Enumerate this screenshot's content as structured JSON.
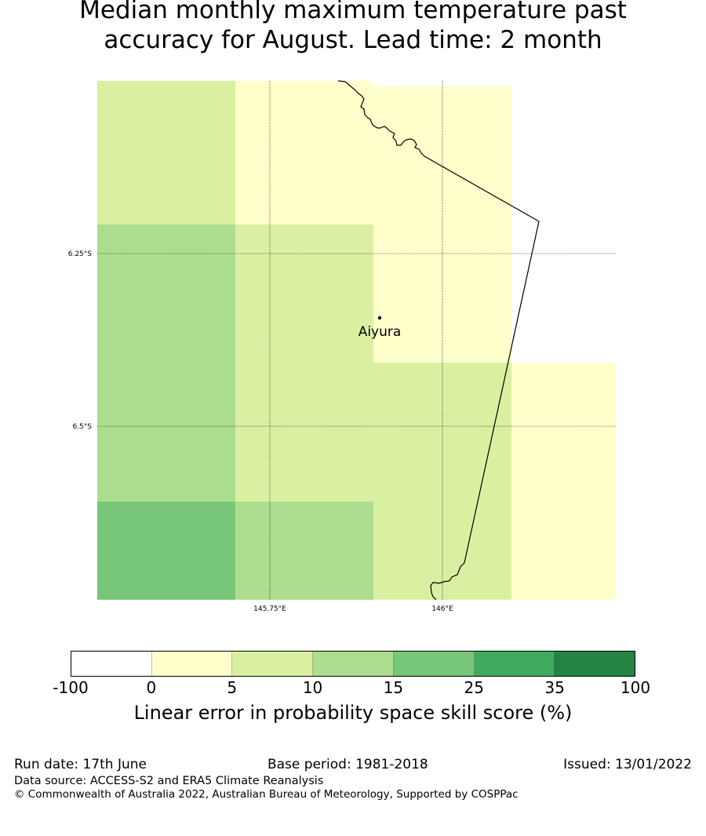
{
  "title_lines": [
    "Median monthly maximum temperature past",
    "accuracy for August. Lead time: 2 month"
  ],
  "map": {
    "lat_labels": [
      "6.25°S",
      "6.5°S"
    ],
    "lon_labels": [
      "145.75°E",
      "146°E"
    ],
    "place": {
      "name": "Aiyura"
    },
    "cell_colors": {
      "0-5": "#ffffcc",
      "5-10": "#d9f0a3",
      "10-15": "#addd8e",
      "15-25": "#78c679"
    }
  },
  "colorbar": {
    "ticks": [
      "-100",
      "0",
      "5",
      "10",
      "15",
      "25",
      "35",
      "100"
    ],
    "colors": [
      "#ffffff",
      "#ffffcc",
      "#d9f0a3",
      "#addd8e",
      "#78c679",
      "#41ab5d",
      "#238443"
    ],
    "label": "Linear error in probability space skill score (%)"
  },
  "footer": {
    "run_date": "Run date: 17th June",
    "base_period": "Base period: 1981-2018",
    "issued": "Issued: 13/01/2022",
    "data_source": "Data source: ACCESS-S2 and ERA5 Climate Reanalysis",
    "copyright": "© Commonwealth of Australia 2022, Australian Bureau of Meteorology, Supported by COSPPac"
  }
}
